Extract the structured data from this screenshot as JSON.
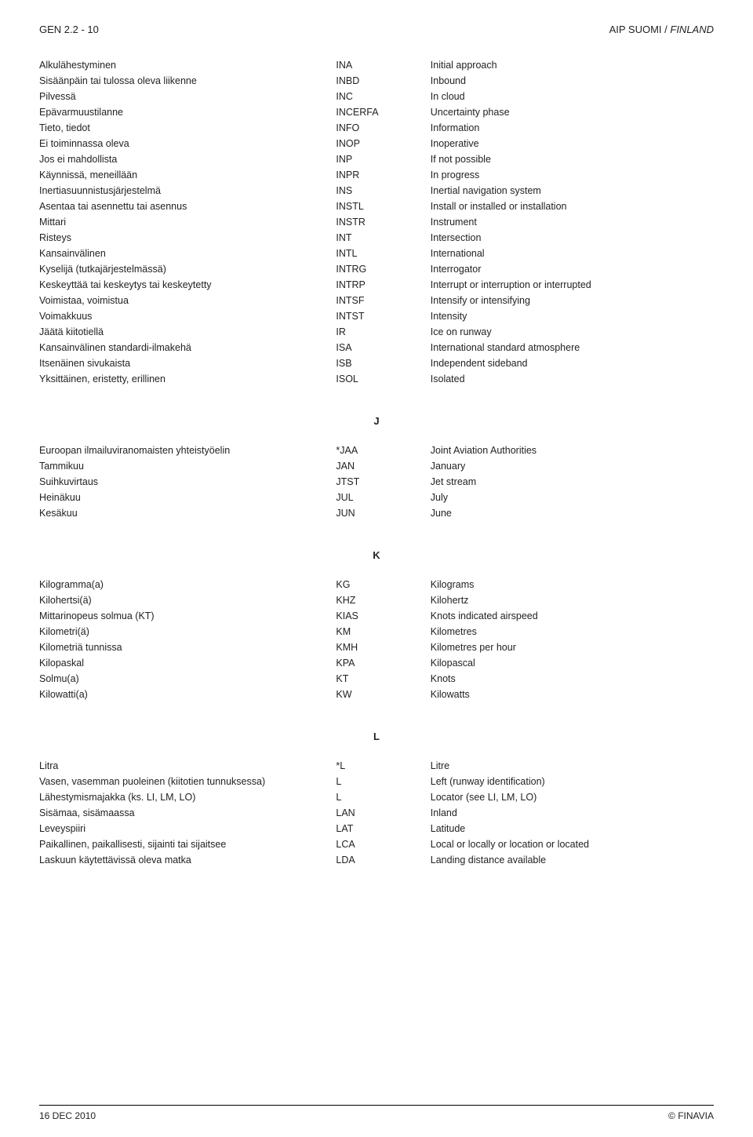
{
  "header": {
    "left": "GEN 2.2 - 10",
    "right_prefix": "AIP SUOMI / ",
    "right_italic": "FINLAND"
  },
  "sections": [
    {
      "letter": "",
      "rows": [
        {
          "fi": "Alkulähestyminen",
          "code": "INA",
          "en": "Initial approach"
        },
        {
          "fi": "Sisäänpäin tai tulossa oleva liikenne",
          "code": "INBD",
          "en": "Inbound"
        },
        {
          "fi": "Pilvessä",
          "code": "INC",
          "en": "In cloud"
        },
        {
          "fi": "Epävarmuustilanne",
          "code": "INCERFA",
          "en": "Uncertainty phase"
        },
        {
          "fi": "Tieto, tiedot",
          "code": "INFO",
          "en": "Information"
        },
        {
          "fi": "Ei toiminnassa oleva",
          "code": "INOP",
          "en": "Inoperative"
        },
        {
          "fi": "Jos ei mahdollista",
          "code": "INP",
          "en": "If not possible"
        },
        {
          "fi": "Käynnissä, meneillään",
          "code": "INPR",
          "en": "In progress"
        },
        {
          "fi": "Inertiasuunnistusjärjestelmä",
          "code": "INS",
          "en": "Inertial navigation system"
        },
        {
          "fi": "Asentaa tai asennettu tai asennus",
          "code": "INSTL",
          "en": "Install or installed or installation"
        },
        {
          "fi": "Mittari",
          "code": "INSTR",
          "en": "Instrument"
        },
        {
          "fi": "Risteys",
          "code": "INT",
          "en": "Intersection"
        },
        {
          "fi": "Kansainvälinen",
          "code": "INTL",
          "en": "International"
        },
        {
          "fi": "Kyselijä (tutkajärjestelmässä)",
          "code": "INTRG",
          "en": "Interrogator"
        },
        {
          "fi": "Keskeyttää tai keskeytys tai keskeytetty",
          "code": "INTRP",
          "en": "Interrupt or interruption or interrupted"
        },
        {
          "fi": "Voimistaa, voimistua",
          "code": "INTSF",
          "en": "Intensify or intensifying"
        },
        {
          "fi": "Voimakkuus",
          "code": "INTST",
          "en": "Intensity"
        },
        {
          "fi": "Jäätä kiitotiellä",
          "code": "IR",
          "en": "Ice on runway"
        },
        {
          "fi": "Kansainvälinen standardi-ilmakehä",
          "code": "ISA",
          "en": "International standard atmosphere"
        },
        {
          "fi": "Itsenäinen sivukaista",
          "code": "ISB",
          "en": "Independent sideband"
        },
        {
          "fi": "Yksittäinen, eristetty, erillinen",
          "code": "ISOL",
          "en": "Isolated"
        }
      ]
    },
    {
      "letter": "J",
      "rows": [
        {
          "fi": "Euroopan ilmailuviranomaisten yhteistyöelin",
          "code": "*JAA",
          "en": "Joint Aviation Authorities"
        },
        {
          "fi": "Tammikuu",
          "code": "JAN",
          "en": "January"
        },
        {
          "fi": "Suihkuvirtaus",
          "code": "JTST",
          "en": "Jet stream"
        },
        {
          "fi": "Heinäkuu",
          "code": "JUL",
          "en": "July"
        },
        {
          "fi": "Kesäkuu",
          "code": "JUN",
          "en": "June"
        }
      ]
    },
    {
      "letter": "K",
      "rows": [
        {
          "fi": "Kilogramma(a)",
          "code": "KG",
          "en": "Kilograms"
        },
        {
          "fi": "Kilohertsi(ä)",
          "code": "KHZ",
          "en": "Kilohertz"
        },
        {
          "fi": "Mittarinopeus solmua (KT)",
          "code": "KIAS",
          "en": "Knots indicated airspeed"
        },
        {
          "fi": "Kilometri(ä)",
          "code": "KM",
          "en": "Kilometres"
        },
        {
          "fi": "Kilometriä tunnissa",
          "code": "KMH",
          "en": "Kilometres per hour"
        },
        {
          "fi": "Kilopaskal",
          "code": "KPA",
          "en": "Kilopascal"
        },
        {
          "fi": "Solmu(a)",
          "code": "KT",
          "en": "Knots"
        },
        {
          "fi": "Kilowatti(a)",
          "code": "KW",
          "en": "Kilowatts"
        }
      ]
    },
    {
      "letter": "L",
      "rows": [
        {
          "fi": "Litra",
          "code": "*L",
          "en": "Litre"
        },
        {
          "fi": "Vasen, vasemman puoleinen (kiitotien tunnuksessa)",
          "code": "L",
          "en": "Left (runway identification)"
        },
        {
          "fi": "Lähestymismajakka (ks. LI, LM, LO)",
          "code": "L",
          "en": "Locator (see LI, LM, LO)"
        },
        {
          "fi": "Sisämaa, sisämaassa",
          "code": "LAN",
          "en": "Inland"
        },
        {
          "fi": "Leveyspiiri",
          "code": "LAT",
          "en": "Latitude"
        },
        {
          "fi": "Paikallinen, paikallisesti, sijainti tai sijaitsee",
          "code": "LCA",
          "en": "Local or locally or location or located"
        },
        {
          "fi": "Laskuun käytettävissä oleva matka",
          "code": "LDA",
          "en": "Landing distance available"
        }
      ]
    }
  ],
  "footer": {
    "left": "16 DEC 2010",
    "right": "© FINAVIA"
  }
}
